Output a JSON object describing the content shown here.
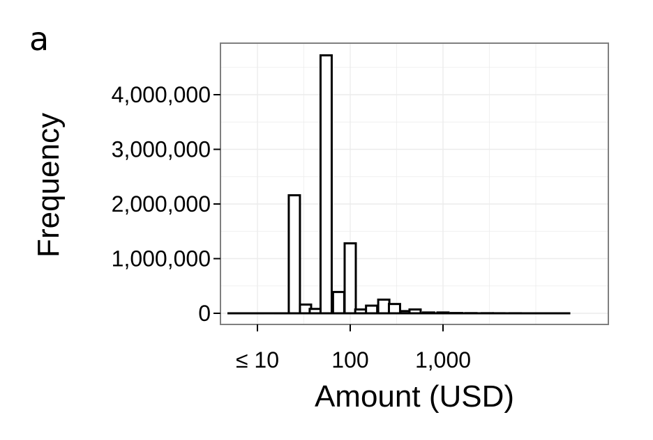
{
  "panel_label": "a",
  "chart_data": {
    "type": "bar",
    "xlabel": "Amount (USD)",
    "ylabel": "Frequency",
    "x_scale": "log10",
    "x_tick_labels": [
      "≤ 10",
      "100",
      "1,000"
    ],
    "x_tick_values": [
      10,
      100,
      1000
    ],
    "y_tick_labels": [
      "0",
      "1,000,000",
      "2,000,000",
      "3,000,000",
      "4,000,000"
    ],
    "y_tick_values": [
      0,
      1000000,
      2000000,
      3000000,
      4000000
    ],
    "ylim": [
      0,
      4800000
    ],
    "grid": true,
    "legend": "none",
    "bins": [
      {
        "x": 5.6,
        "value": 0
      },
      {
        "x": 10,
        "value": 0
      },
      {
        "x": 17.8,
        "value": 0
      },
      {
        "x": 25,
        "value": 2160000
      },
      {
        "x": 33,
        "value": 160000
      },
      {
        "x": 42,
        "value": 80000
      },
      {
        "x": 55,
        "value": 4720000
      },
      {
        "x": 75,
        "value": 390000
      },
      {
        "x": 100,
        "value": 1280000
      },
      {
        "x": 130,
        "value": 70000
      },
      {
        "x": 170,
        "value": 140000
      },
      {
        "x": 230,
        "value": 250000
      },
      {
        "x": 300,
        "value": 170000
      },
      {
        "x": 400,
        "value": 40000
      },
      {
        "x": 500,
        "value": 70000
      },
      {
        "x": 700,
        "value": 15000
      },
      {
        "x": 1000,
        "value": 15000
      },
      {
        "x": 1400,
        "value": 5000
      },
      {
        "x": 2000,
        "value": 3000
      },
      {
        "x": 3000,
        "value": 2000
      },
      {
        "x": 4000,
        "value": 1000
      },
      {
        "x": 6000,
        "value": 1000
      },
      {
        "x": 8000,
        "value": 0
      },
      {
        "x": 11000,
        "value": 0
      },
      {
        "x": 15000,
        "value": 0
      },
      {
        "x": 20000,
        "value": 0
      }
    ],
    "colors": {
      "bar_fill": "#ffffff",
      "bar_stroke": "#000000",
      "grid": "#ececec",
      "panel_border": "#7f7f7f"
    }
  }
}
